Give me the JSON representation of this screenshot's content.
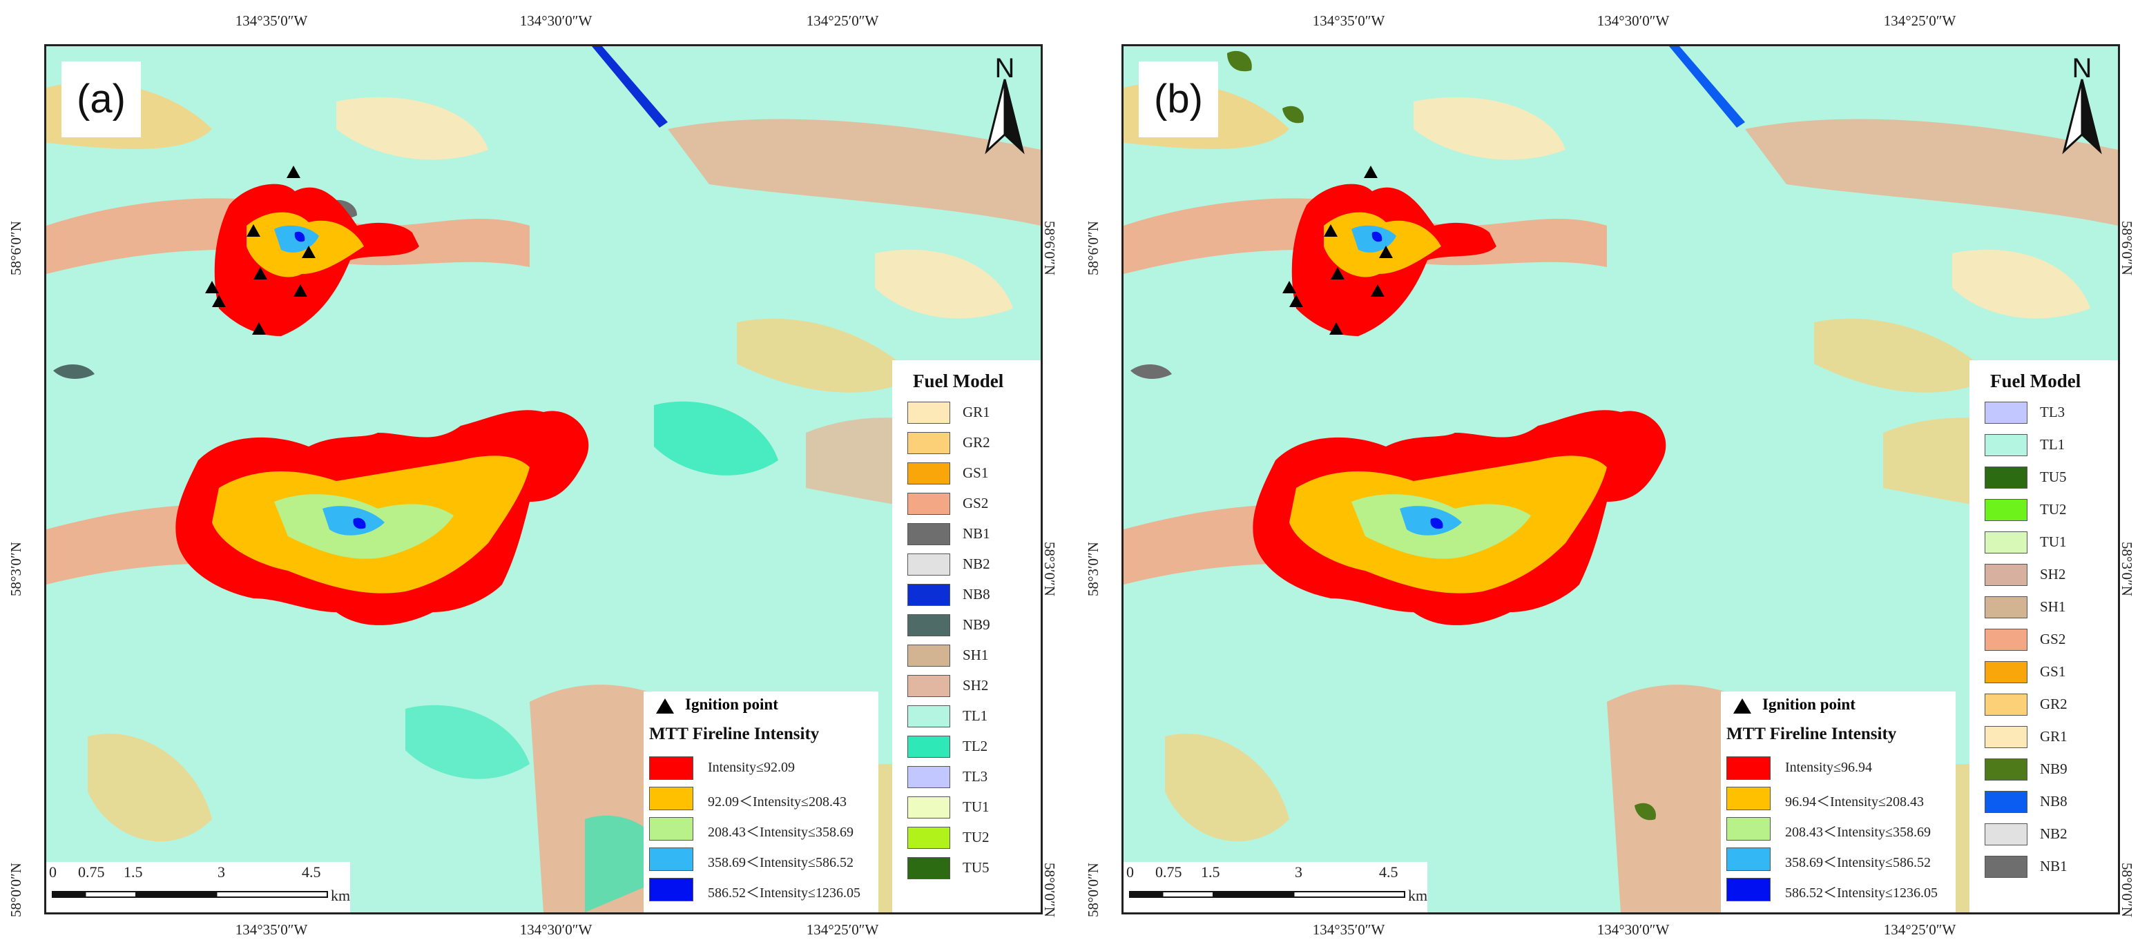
{
  "colors": {
    "background_tl1": "#b3f5e0",
    "tl2": "#2ee8b8",
    "gs2": "#f4a784",
    "gr2": "#fbd077",
    "gr1": "#fde8b8",
    "nb1": "#6e6e6e",
    "nb9": "#4f6b68",
    "nb8": "#0b2fd6",
    "tu5": "#2d6b12",
    "intensity_1": "#ff0000",
    "intensity_2": "#ffc000",
    "intensity_3": "#b8f08a",
    "intensity_4": "#33b8f5",
    "intensity_5": "#0010f0"
  },
  "panels": [
    {
      "label": "(a)",
      "top_coords": [
        "134°35′0″W",
        "134°30′0″W",
        "134°25′0″W"
      ],
      "bottom_coords": [
        "134°35′0″W",
        "134°30′0″W",
        "134°25′0″W"
      ],
      "left_coords": [
        "58°6′0″N",
        "58°3′0″N",
        "58°0′0″N"
      ],
      "right_coords": [
        "58°6′0″N",
        "58°3′0″N",
        "58°0′0″N"
      ],
      "north": "N",
      "fuel_legend": {
        "title": "Fuel Model",
        "items": [
          {
            "code": "GR1",
            "color": "#fde8b8"
          },
          {
            "code": "GR2",
            "color": "#fbd077"
          },
          {
            "code": "GS1",
            "color": "#f8a60a"
          },
          {
            "code": "GS2",
            "color": "#f4a784"
          },
          {
            "code": "NB1",
            "color": "#6e6e6e"
          },
          {
            "code": "NB2",
            "color": "#e1e1e1"
          },
          {
            "code": "NB8",
            "color": "#0b2fd6"
          },
          {
            "code": "NB9",
            "color": "#4f6b68"
          },
          {
            "code": "SH1",
            "color": "#d2b493"
          },
          {
            "code": "SH2",
            "color": "#e1b7a2"
          },
          {
            "code": "TL1",
            "color": "#b3f5e0"
          },
          {
            "code": "TL2",
            "color": "#2ee8b8"
          },
          {
            "code": "TL3",
            "color": "#c2c8ff"
          },
          {
            "code": "TU1",
            "color": "#eefcc0"
          },
          {
            "code": "TU2",
            "color": "#b2f21b"
          },
          {
            "code": "TU5",
            "color": "#2d6b12"
          }
        ]
      },
      "ignition_label": "Ignition point",
      "intensity_legend": {
        "title": "MTT Fireline Intensity",
        "items": [
          {
            "label": "Intensity≤92.09",
            "color": "#ff0000"
          },
          {
            "label": "92.09＜Intensity≤208.43",
            "color": "#ffc000"
          },
          {
            "label": "208.43＜Intensity≤358.69",
            "color": "#b8f08a"
          },
          {
            "label": "358.69＜Intensity≤586.52",
            "color": "#33b8f5"
          },
          {
            "label": "586.52＜Intensity≤1236.05",
            "color": "#0010f0"
          }
        ]
      },
      "scale": {
        "ticks": [
          "0",
          "0.75",
          "1.5",
          "3",
          "4.5"
        ],
        "unit": "km"
      }
    },
    {
      "label": "(b)",
      "top_coords": [
        "134°35′0″W",
        "134°30′0″W",
        "134°25′0″W"
      ],
      "bottom_coords": [
        "134°35′0″W",
        "134°30′0″W",
        "134°25′0″W"
      ],
      "left_coords": [
        "58°6′0″N",
        "58°3′0″N",
        "58°0′0″N"
      ],
      "right_coords": [
        "58°6′0″N",
        "58°3′0″N",
        "58°0′0″N"
      ],
      "north": "N",
      "fuel_legend": {
        "title": "Fuel Model",
        "items": [
          {
            "code": "TL3",
            "color": "#c2c8ff"
          },
          {
            "code": "TL1",
            "color": "#b3f5e0"
          },
          {
            "code": "TU5",
            "color": "#2d6b12"
          },
          {
            "code": "TU2",
            "color": "#6ef21b"
          },
          {
            "code": "TU1",
            "color": "#d8f8b8"
          },
          {
            "code": "SH2",
            "color": "#d8b0a0"
          },
          {
            "code": "SH1",
            "color": "#d2b493"
          },
          {
            "code": "GS2",
            "color": "#f4a784"
          },
          {
            "code": "GS1",
            "color": "#f8a60a"
          },
          {
            "code": "GR2",
            "color": "#fbd077"
          },
          {
            "code": "GR1",
            "color": "#fde8b8"
          },
          {
            "code": "NB9",
            "color": "#4e7a1a"
          },
          {
            "code": "NB8",
            "color": "#0b5cf0"
          },
          {
            "code": "NB2",
            "color": "#e1e1e1"
          },
          {
            "code": "NB1",
            "color": "#6e6e6e"
          }
        ]
      },
      "ignition_label": "Ignition point",
      "intensity_legend": {
        "title": "MTT Fireline Intensity",
        "items": [
          {
            "label": "Intensity≤96.94",
            "color": "#ff0000"
          },
          {
            "label": "96.94＜Intensity≤208.43",
            "color": "#ffc000"
          },
          {
            "label": "208.43＜Intensity≤358.69",
            "color": "#b8f08a"
          },
          {
            "label": "358.69＜Intensity≤586.52",
            "color": "#33b8f5"
          },
          {
            "label": "586.52＜Intensity≤1236.05",
            "color": "#0010f0"
          }
        ]
      },
      "scale": {
        "ticks": [
          "0",
          "0.75",
          "1.5",
          "3",
          "4.5"
        ],
        "unit": "km"
      }
    }
  ]
}
